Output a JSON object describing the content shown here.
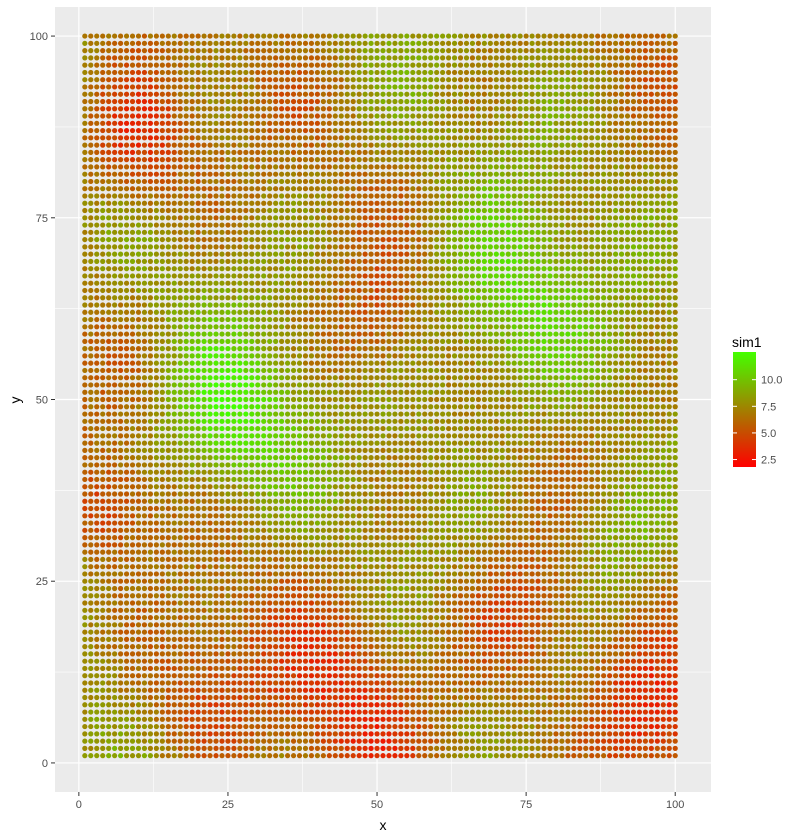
{
  "chart_data": {
    "type": "scatter",
    "title": "",
    "xlabel": "x",
    "ylabel": "y",
    "xlim": [
      -4,
      106
    ],
    "ylim": [
      -4,
      104
    ],
    "x_ticks": [
      0,
      25,
      50,
      75,
      100
    ],
    "y_ticks": [
      0,
      25,
      50,
      75,
      100
    ],
    "x_tick_labels": [
      "0",
      "25",
      "50",
      "75",
      "100"
    ],
    "y_tick_labels": [
      "0",
      "25",
      "50",
      "75",
      "100"
    ],
    "grid": true,
    "panel_background": "#ebebeb",
    "grid_color": "#ffffff",
    "x_range": [
      1,
      100
    ],
    "y_range": [
      1,
      100
    ],
    "grid_step": 1,
    "color_variable": "sim1",
    "color_range": [
      1.8,
      12.6
    ],
    "color_low": "#ff0000",
    "color_high": "#44ff00",
    "legend": {
      "title": "sim1",
      "position": "right",
      "breaks": [
        2.5,
        5.0,
        7.5,
        10.0
      ],
      "labels": [
        "2.5",
        "5.0",
        "7.5",
        "10.0"
      ]
    },
    "field_features": [
      {
        "x": 25,
        "y": 47,
        "value": 11.5,
        "spread": 8
      },
      {
        "x": 72,
        "y": 62,
        "value": 11.0,
        "spread": 10
      },
      {
        "x": 90,
        "y": 30,
        "value": 10.0,
        "spread": 7
      },
      {
        "x": 10,
        "y": 85,
        "value": 3.5,
        "spread": 7
      },
      {
        "x": 95,
        "y": 5,
        "value": 2.5,
        "spread": 7
      },
      {
        "x": 75,
        "y": 20,
        "value": 4.0,
        "spread": 8
      },
      {
        "x": 50,
        "y": 60,
        "value": 5.0,
        "spread": 6
      },
      {
        "x": 45,
        "y": 8,
        "value": 4.5,
        "spread": 9
      },
      {
        "x": 5,
        "y": 35,
        "value": 4.0,
        "spread": 5
      },
      {
        "x": 20,
        "y": 10,
        "value": 4.5,
        "spread": 8
      }
    ],
    "field_base_value": 7.3
  }
}
